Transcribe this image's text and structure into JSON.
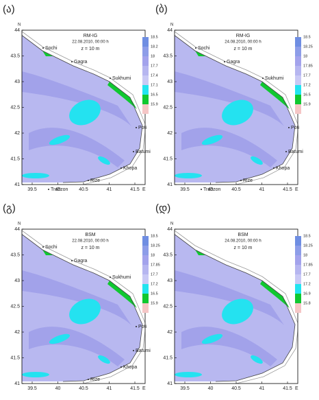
{
  "panels": [
    {
      "label": "(ა)",
      "model": "RM-IG",
      "date": "22.08.2010, 00:00 h",
      "depth": "z = 10 m",
      "places": [
        "Sochi",
        "Gagra",
        "Sukhumi",
        "Poti",
        "Batumi",
        "Khopa",
        "Rize",
        "Trabzon"
      ],
      "colorbar": [
        "18.5",
        "18.2",
        "18",
        "17.7",
        "17.4",
        "17.1",
        "16.5",
        "15.9"
      ]
    },
    {
      "label": "(ბ)",
      "model": "RM-IG",
      "date": "24.08.2010, 00:00 h",
      "depth": "z = 10 m",
      "places": [
        "Sochi",
        "Gagra",
        "Sukhumi",
        "Poti",
        "Batumi",
        "Khopa",
        "Rize",
        "Trabzon"
      ],
      "colorbar": [
        "18.5",
        "18.25",
        "18",
        "17.85",
        "17.7",
        "17.2",
        "16.5",
        "15.9"
      ]
    },
    {
      "label": "(გ)",
      "model": "BSM",
      "date": "22.08.2010, 00:00 h",
      "depth": "z = 10 m",
      "places": [
        "Sochi",
        "Gagra",
        "Sukhumi",
        "Poti",
        "Batumi",
        "Khopa",
        "Rize"
      ],
      "colorbar": [
        "18.5",
        "18.25",
        "18",
        "17.85",
        "17.7",
        "17.2",
        "16.5",
        "15.9"
      ]
    },
    {
      "label": "(დ)",
      "model": "BSM",
      "date": "24.08.2010, 00:00 h",
      "depth": "z = 10 m",
      "places": [],
      "colorbar": [
        "18.5",
        "18.25",
        "18",
        "17.85",
        "17.7",
        "17.2",
        "16.9",
        "15.8"
      ]
    }
  ],
  "colorbar_colors": [
    "#6f8ee2",
    "#8d9de8",
    "#a3a3ec",
    "#b6b6f0",
    "#c9c9f5",
    "#22e4f0",
    "#10c830",
    "#f5c6c6"
  ],
  "axes": {
    "lat_ticks": [
      "41",
      "41.5",
      "42",
      "42.5",
      "43",
      "43.5",
      "44"
    ],
    "lon_ticks": [
      "39.5",
      "40",
      "40.5",
      "41",
      "41.5"
    ],
    "north": "N",
    "east": "E"
  }
}
